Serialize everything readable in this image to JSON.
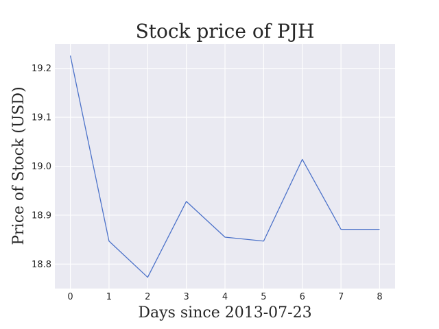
{
  "chart_data": {
    "type": "line",
    "title": "Stock price of PJH",
    "xlabel": "Days since 2013-07-23",
    "ylabel": "Price of Stock (USD)",
    "x": [
      0,
      1,
      2,
      3,
      4,
      5,
      6,
      7,
      8
    ],
    "series": [
      {
        "values": [
          19.226,
          18.847,
          18.773,
          18.928,
          18.855,
          18.847,
          19.014,
          18.871,
          18.871
        ]
      }
    ],
    "xlim": [
      -0.4,
      8.4
    ],
    "ylim": [
      18.75,
      19.25
    ],
    "xticks": [
      "0",
      "1",
      "2",
      "3",
      "4",
      "5",
      "6",
      "7",
      "8"
    ],
    "yticks": [
      "18.8",
      "18.9",
      "19.0",
      "19.1",
      "19.2"
    ],
    "grid": true,
    "legend": false,
    "colors": {
      "background": "#eaeaf2",
      "grid": "#ffffff",
      "line": "#4c72c9"
    }
  }
}
